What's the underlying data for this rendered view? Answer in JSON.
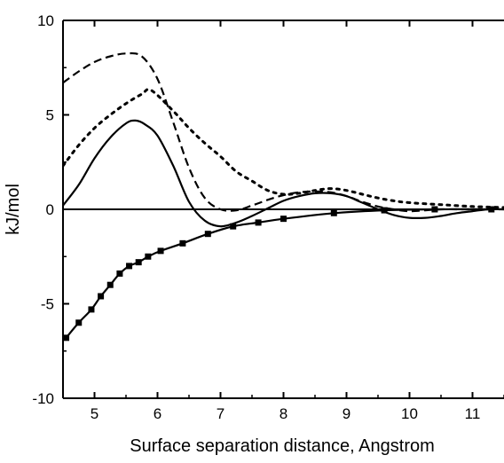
{
  "chart_data": {
    "type": "line",
    "title": "",
    "xlabel": "Surface separation distance,  Angstrom",
    "ylabel": "kJ/mol",
    "xlim": [
      4.5,
      11.5
    ],
    "ylim": [
      -10,
      10
    ],
    "grid": false,
    "legend": "none",
    "x_ticks": [
      5,
      6,
      7,
      8,
      9,
      10,
      11
    ],
    "x_tick_labels": [
      "5",
      "6",
      "7",
      "8",
      "9",
      "10",
      "11"
    ],
    "y_ticks": [
      -10,
      -5,
      0,
      5,
      10
    ],
    "y_tick_labels": [
      "-10",
      "-5",
      "0",
      "5",
      "10"
    ],
    "zero_line": true,
    "series": [
      {
        "style": "solid-with-squares",
        "x": [
          4.55,
          4.75,
          4.95,
          5.1,
          5.25,
          5.4,
          5.55,
          5.7,
          5.85,
          6.05,
          6.4,
          6.8,
          7.2,
          7.6,
          8.0,
          8.8,
          9.6,
          10.4,
          11.3
        ],
        "y": [
          -6.8,
          -6.0,
          -5.3,
          -4.6,
          -4.0,
          -3.4,
          -3.0,
          -2.8,
          -2.5,
          -2.2,
          -1.8,
          -1.3,
          -0.9,
          -0.7,
          -0.5,
          -0.2,
          -0.05,
          0.0,
          0.0
        ]
      },
      {
        "style": "solid",
        "x": [
          4.5,
          4.75,
          5.0,
          5.25,
          5.5,
          5.65,
          5.8,
          6.0,
          6.25,
          6.5,
          6.75,
          7.0,
          7.25,
          7.5,
          7.75,
          8.0,
          8.25,
          8.5,
          8.75,
          9.0,
          9.25,
          9.5,
          9.75,
          10.0,
          10.25,
          10.5,
          10.75,
          11.0,
          11.25,
          11.5
        ],
        "y": [
          0.2,
          1.3,
          2.7,
          3.8,
          4.55,
          4.7,
          4.5,
          3.9,
          2.3,
          0.4,
          -0.6,
          -0.9,
          -0.7,
          -0.35,
          0.05,
          0.45,
          0.7,
          0.85,
          0.85,
          0.7,
          0.35,
          0.0,
          -0.3,
          -0.45,
          -0.45,
          -0.35,
          -0.2,
          -0.1,
          0.0,
          0.0
        ]
      },
      {
        "style": "dashed",
        "x": [
          4.5,
          4.75,
          5.0,
          5.25,
          5.5,
          5.75,
          6.0,
          6.25,
          6.5,
          6.75,
          7.0,
          7.25,
          7.5,
          7.75,
          8.0,
          8.25,
          8.5,
          8.75,
          9.0,
          9.25,
          9.5,
          9.75,
          10.0,
          10.25,
          10.5,
          10.75,
          11.0,
          11.25,
          11.5
        ],
        "y": [
          6.7,
          7.3,
          7.8,
          8.1,
          8.25,
          8.1,
          6.9,
          4.6,
          2.2,
          0.6,
          0.0,
          -0.05,
          0.2,
          0.5,
          0.75,
          0.9,
          0.95,
          0.9,
          0.7,
          0.4,
          0.15,
          0.0,
          -0.1,
          -0.05,
          0.0,
          0.0,
          0.0,
          0.0,
          0.0
        ]
      },
      {
        "style": "dotted",
        "x": [
          4.5,
          4.75,
          5.0,
          5.25,
          5.5,
          5.75,
          5.9,
          6.25,
          6.5,
          6.75,
          7.0,
          7.25,
          7.5,
          7.75,
          8.0,
          8.25,
          8.5,
          8.75,
          9.0,
          9.25,
          9.5,
          9.75,
          10.0,
          10.5,
          11.0,
          11.5
        ],
        "y": [
          2.3,
          3.4,
          4.3,
          5.0,
          5.6,
          6.1,
          6.3,
          5.2,
          4.3,
          3.5,
          2.8,
          2.0,
          1.5,
          1.0,
          0.8,
          0.85,
          1.0,
          1.1,
          1.0,
          0.8,
          0.6,
          0.45,
          0.35,
          0.25,
          0.15,
          0.1
        ]
      }
    ]
  },
  "colors": {
    "line": "#000000",
    "background": "#ffffff"
  }
}
